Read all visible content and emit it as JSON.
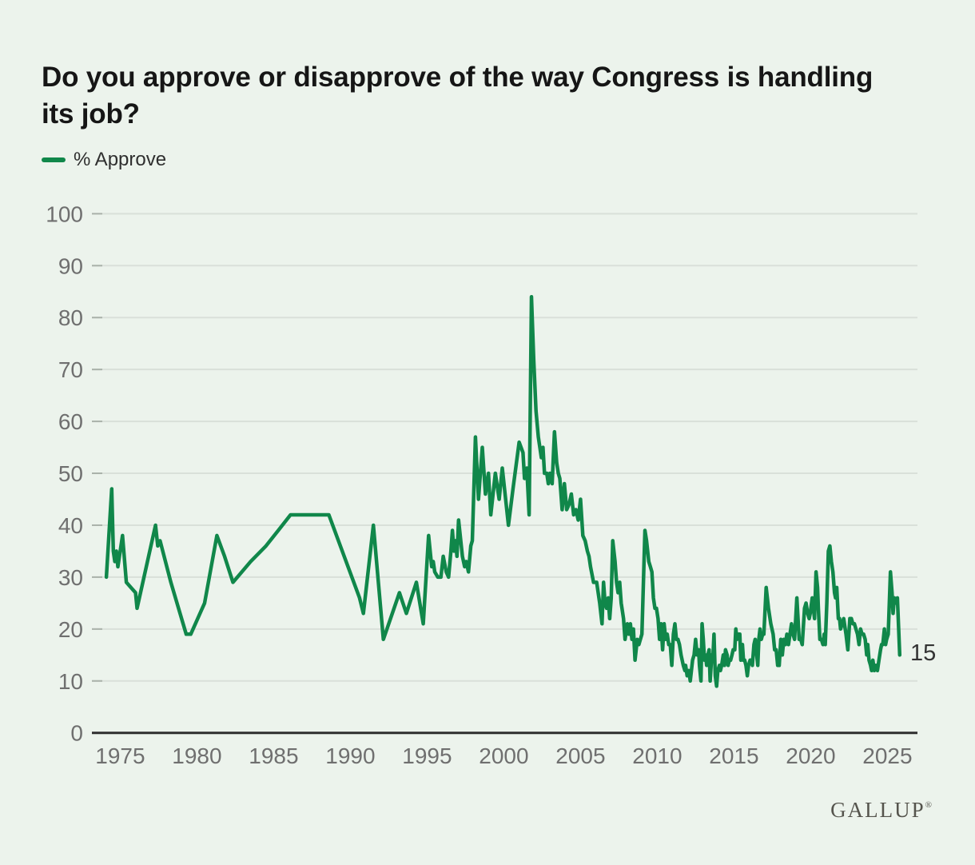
{
  "header": {
    "title": "Do you approve or disapprove of the way Congress is handling its job?"
  },
  "legend": {
    "label": "% Approve"
  },
  "footer": {
    "brand": "GALLUP",
    "registered_mark": "®"
  },
  "chart_data": {
    "type": "line",
    "title": "Do you approve or disapprove of the way Congress is handling its job?",
    "xlabel": "",
    "ylabel": "% Approve",
    "ylim": [
      0,
      100
    ],
    "yticks": [
      0,
      10,
      20,
      30,
      40,
      50,
      60,
      70,
      80,
      90,
      100
    ],
    "xticks": [
      1975,
      1980,
      1985,
      1990,
      1995,
      2000,
      2005,
      2010,
      2015,
      2020,
      2025
    ],
    "x_range": [
      1974.1,
      2025.8
    ],
    "grid": true,
    "legend_position": "top-left",
    "end_label": {
      "text": "15",
      "value": 15
    },
    "colors": {
      "background": "#ecf3ec",
      "grid": "#d9e0d9",
      "tick": "#aab2aa",
      "axis": "#2e2e2e",
      "axis_label": "#6f6f6f",
      "end_label": "#333333"
    },
    "series": [
      {
        "name": "% Approve",
        "color": "#10874a",
        "points": [
          [
            1974.1,
            30
          ],
          [
            1974.45,
            47
          ],
          [
            1974.55,
            35
          ],
          [
            1974.65,
            33
          ],
          [
            1974.75,
            35
          ],
          [
            1974.85,
            32
          ],
          [
            1975.15,
            38
          ],
          [
            1975.4,
            29
          ],
          [
            1975.7,
            28
          ],
          [
            1976.0,
            27
          ],
          [
            1976.1,
            24
          ],
          [
            1977.3,
            40
          ],
          [
            1977.45,
            36
          ],
          [
            1977.6,
            37
          ],
          [
            1978.3,
            29
          ],
          [
            1978.8,
            24
          ],
          [
            1979.3,
            19
          ],
          [
            1979.6,
            19
          ],
          [
            1980.5,
            25
          ],
          [
            1981.3,
            38
          ],
          [
            1981.8,
            34
          ],
          [
            1982.35,
            29
          ],
          [
            1983.5,
            33
          ],
          [
            1984.5,
            36
          ],
          [
            1985.3,
            39
          ],
          [
            1986.1,
            42
          ],
          [
            1988.6,
            42
          ],
          [
            1990.6,
            26
          ],
          [
            1990.85,
            23
          ],
          [
            1991.5,
            40
          ],
          [
            1992.15,
            18
          ],
          [
            1993.2,
            27
          ],
          [
            1993.65,
            23
          ],
          [
            1994.3,
            29
          ],
          [
            1994.75,
            21
          ],
          [
            1995.1,
            38
          ],
          [
            1995.3,
            32
          ],
          [
            1995.4,
            33
          ],
          [
            1995.5,
            31
          ],
          [
            1995.7,
            30
          ],
          [
            1995.9,
            30
          ],
          [
            1996.05,
            34
          ],
          [
            1996.25,
            31
          ],
          [
            1996.4,
            30
          ],
          [
            1996.55,
            35
          ],
          [
            1996.65,
            39
          ],
          [
            1996.75,
            35
          ],
          [
            1996.85,
            37
          ],
          [
            1996.95,
            34
          ],
          [
            1997.05,
            41
          ],
          [
            1997.3,
            34
          ],
          [
            1997.45,
            32
          ],
          [
            1997.55,
            33
          ],
          [
            1997.7,
            31
          ],
          [
            1997.85,
            36
          ],
          [
            1997.95,
            37
          ],
          [
            1998.15,
            57
          ],
          [
            1998.35,
            45
          ],
          [
            1998.6,
            55
          ],
          [
            1998.8,
            46
          ],
          [
            1999.0,
            50
          ],
          [
            1999.15,
            42
          ],
          [
            1999.45,
            50
          ],
          [
            1999.7,
            45
          ],
          [
            1999.9,
            51
          ],
          [
            2000.3,
            40
          ],
          [
            2000.6,
            47
          ],
          [
            2001.0,
            56
          ],
          [
            2001.25,
            54
          ],
          [
            2001.35,
            49
          ],
          [
            2001.5,
            51
          ],
          [
            2001.65,
            42
          ],
          [
            2001.8,
            84
          ],
          [
            2001.95,
            72
          ],
          [
            2002.1,
            62
          ],
          [
            2002.25,
            57
          ],
          [
            2002.35,
            55
          ],
          [
            2002.45,
            53
          ],
          [
            2002.55,
            55
          ],
          [
            2002.65,
            50
          ],
          [
            2002.8,
            50
          ],
          [
            2002.9,
            48
          ],
          [
            2003.0,
            50
          ],
          [
            2003.15,
            48
          ],
          [
            2003.3,
            58
          ],
          [
            2003.45,
            52
          ],
          [
            2003.55,
            50
          ],
          [
            2003.65,
            49
          ],
          [
            2003.8,
            43
          ],
          [
            2003.95,
            48
          ],
          [
            2004.1,
            43
          ],
          [
            2004.25,
            44
          ],
          [
            2004.4,
            46
          ],
          [
            2004.55,
            42
          ],
          [
            2004.7,
            43
          ],
          [
            2004.85,
            41
          ],
          [
            2005.0,
            45
          ],
          [
            2005.15,
            38
          ],
          [
            2005.3,
            37
          ],
          [
            2005.45,
            35
          ],
          [
            2005.55,
            34
          ],
          [
            2005.65,
            32
          ],
          [
            2005.85,
            29
          ],
          [
            2006.05,
            29
          ],
          [
            2006.25,
            25
          ],
          [
            2006.4,
            21
          ],
          [
            2006.5,
            29
          ],
          [
            2006.6,
            25
          ],
          [
            2006.7,
            24
          ],
          [
            2006.8,
            26
          ],
          [
            2006.9,
            22
          ],
          [
            2007.0,
            26
          ],
          [
            2007.1,
            37
          ],
          [
            2007.25,
            33
          ],
          [
            2007.35,
            29
          ],
          [
            2007.45,
            27
          ],
          [
            2007.55,
            29
          ],
          [
            2007.65,
            25
          ],
          [
            2007.8,
            22
          ],
          [
            2007.9,
            18
          ],
          [
            2008.05,
            21
          ],
          [
            2008.15,
            19
          ],
          [
            2008.25,
            21
          ],
          [
            2008.35,
            18
          ],
          [
            2008.45,
            20
          ],
          [
            2008.55,
            14
          ],
          [
            2008.7,
            18
          ],
          [
            2008.8,
            17
          ],
          [
            2009.0,
            19
          ],
          [
            2009.2,
            39
          ],
          [
            2009.3,
            37
          ],
          [
            2009.45,
            33
          ],
          [
            2009.55,
            32
          ],
          [
            2009.65,
            31
          ],
          [
            2009.75,
            26
          ],
          [
            2009.85,
            24
          ],
          [
            2009.95,
            24
          ],
          [
            2010.05,
            22
          ],
          [
            2010.15,
            18
          ],
          [
            2010.25,
            21
          ],
          [
            2010.35,
            16
          ],
          [
            2010.45,
            21
          ],
          [
            2010.55,
            18
          ],
          [
            2010.65,
            19
          ],
          [
            2010.75,
            17
          ],
          [
            2010.85,
            17
          ],
          [
            2010.95,
            13
          ],
          [
            2011.05,
            19
          ],
          [
            2011.15,
            21
          ],
          [
            2011.25,
            18
          ],
          [
            2011.35,
            18
          ],
          [
            2011.45,
            17
          ],
          [
            2011.55,
            15
          ],
          [
            2011.7,
            13
          ],
          [
            2011.8,
            12
          ],
          [
            2011.85,
            13
          ],
          [
            2011.95,
            11
          ],
          [
            2012.05,
            12
          ],
          [
            2012.15,
            10
          ],
          [
            2012.3,
            14
          ],
          [
            2012.4,
            15
          ],
          [
            2012.5,
            18
          ],
          [
            2012.6,
            15
          ],
          [
            2012.7,
            16
          ],
          [
            2012.75,
            13
          ],
          [
            2012.85,
            10
          ],
          [
            2012.92,
            21
          ],
          [
            2013.0,
            18
          ],
          [
            2013.08,
            14
          ],
          [
            2013.15,
            15
          ],
          [
            2013.22,
            13
          ],
          [
            2013.3,
            15
          ],
          [
            2013.38,
            16
          ],
          [
            2013.45,
            10
          ],
          [
            2013.55,
            15
          ],
          [
            2013.62,
            14
          ],
          [
            2013.7,
            19
          ],
          [
            2013.78,
            11
          ],
          [
            2013.87,
            9
          ],
          [
            2013.95,
            12
          ],
          [
            2014.05,
            13
          ],
          [
            2014.12,
            12
          ],
          [
            2014.2,
            13
          ],
          [
            2014.3,
            15
          ],
          [
            2014.38,
            13
          ],
          [
            2014.45,
            16
          ],
          [
            2014.55,
            15
          ],
          [
            2014.62,
            13
          ],
          [
            2014.7,
            14
          ],
          [
            2014.78,
            14
          ],
          [
            2014.87,
            15
          ],
          [
            2014.95,
            16
          ],
          [
            2015.05,
            16
          ],
          [
            2015.12,
            20
          ],
          [
            2015.2,
            18
          ],
          [
            2015.3,
            19
          ],
          [
            2015.38,
            19
          ],
          [
            2015.45,
            14
          ],
          [
            2015.55,
            17
          ],
          [
            2015.62,
            14
          ],
          [
            2015.7,
            14
          ],
          [
            2015.78,
            13
          ],
          [
            2015.87,
            11
          ],
          [
            2015.95,
            13
          ],
          [
            2016.05,
            14
          ],
          [
            2016.12,
            14
          ],
          [
            2016.2,
            13
          ],
          [
            2016.3,
            17
          ],
          [
            2016.38,
            18
          ],
          [
            2016.45,
            16
          ],
          [
            2016.55,
            13
          ],
          [
            2016.62,
            18
          ],
          [
            2016.7,
            20
          ],
          [
            2016.78,
            18
          ],
          [
            2016.87,
            19
          ],
          [
            2016.95,
            19
          ],
          [
            2017.1,
            28
          ],
          [
            2017.25,
            24
          ],
          [
            2017.4,
            21
          ],
          [
            2017.55,
            19
          ],
          [
            2017.65,
            16
          ],
          [
            2017.75,
            16
          ],
          [
            2017.85,
            13
          ],
          [
            2017.95,
            13
          ],
          [
            2018.05,
            18
          ],
          [
            2018.15,
            15
          ],
          [
            2018.25,
            18
          ],
          [
            2018.35,
            17
          ],
          [
            2018.45,
            19
          ],
          [
            2018.55,
            17
          ],
          [
            2018.65,
            19
          ],
          [
            2018.75,
            21
          ],
          [
            2018.85,
            19
          ],
          [
            2018.95,
            18
          ],
          [
            2019.1,
            26
          ],
          [
            2019.25,
            18
          ],
          [
            2019.35,
            18
          ],
          [
            2019.45,
            17
          ],
          [
            2019.6,
            24
          ],
          [
            2019.7,
            25
          ],
          [
            2019.8,
            23
          ],
          [
            2019.9,
            22
          ],
          [
            2019.97,
            23
          ],
          [
            2020.1,
            26
          ],
          [
            2020.25,
            22
          ],
          [
            2020.35,
            31
          ],
          [
            2020.45,
            28
          ],
          [
            2020.5,
            24
          ],
          [
            2020.6,
            18
          ],
          [
            2020.7,
            18
          ],
          [
            2020.8,
            17
          ],
          [
            2020.88,
            19
          ],
          [
            2020.95,
            17
          ],
          [
            2021.05,
            25
          ],
          [
            2021.15,
            35
          ],
          [
            2021.25,
            36
          ],
          [
            2021.35,
            33
          ],
          [
            2021.45,
            31
          ],
          [
            2021.55,
            27
          ],
          [
            2021.62,
            26
          ],
          [
            2021.7,
            28
          ],
          [
            2021.8,
            22
          ],
          [
            2021.88,
            22
          ],
          [
            2021.95,
            20
          ],
          [
            2022.05,
            21
          ],
          [
            2022.15,
            22
          ],
          [
            2022.25,
            20
          ],
          [
            2022.3,
            19
          ],
          [
            2022.42,
            16
          ],
          [
            2022.55,
            22
          ],
          [
            2022.65,
            22
          ],
          [
            2022.75,
            21
          ],
          [
            2022.85,
            21
          ],
          [
            2022.95,
            20
          ],
          [
            2023.05,
            19
          ],
          [
            2023.15,
            17
          ],
          [
            2023.25,
            20
          ],
          [
            2023.35,
            19
          ],
          [
            2023.45,
            19
          ],
          [
            2023.55,
            18
          ],
          [
            2023.65,
            15
          ],
          [
            2023.72,
            17
          ],
          [
            2023.8,
            14
          ],
          [
            2023.9,
            13
          ],
          [
            2023.97,
            12
          ],
          [
            2024.05,
            14
          ],
          [
            2024.15,
            12
          ],
          [
            2024.25,
            13
          ],
          [
            2024.35,
            12
          ],
          [
            2024.45,
            14
          ],
          [
            2024.55,
            16
          ],
          [
            2024.62,
            17
          ],
          [
            2024.7,
            17
          ],
          [
            2024.8,
            20
          ],
          [
            2024.88,
            17
          ],
          [
            2024.95,
            18
          ],
          [
            2025.05,
            19
          ],
          [
            2025.2,
            31
          ],
          [
            2025.3,
            27
          ],
          [
            2025.37,
            23
          ],
          [
            2025.45,
            26
          ],
          [
            2025.55,
            25
          ],
          [
            2025.65,
            26
          ],
          [
            2025.8,
            15
          ]
        ]
      }
    ]
  }
}
